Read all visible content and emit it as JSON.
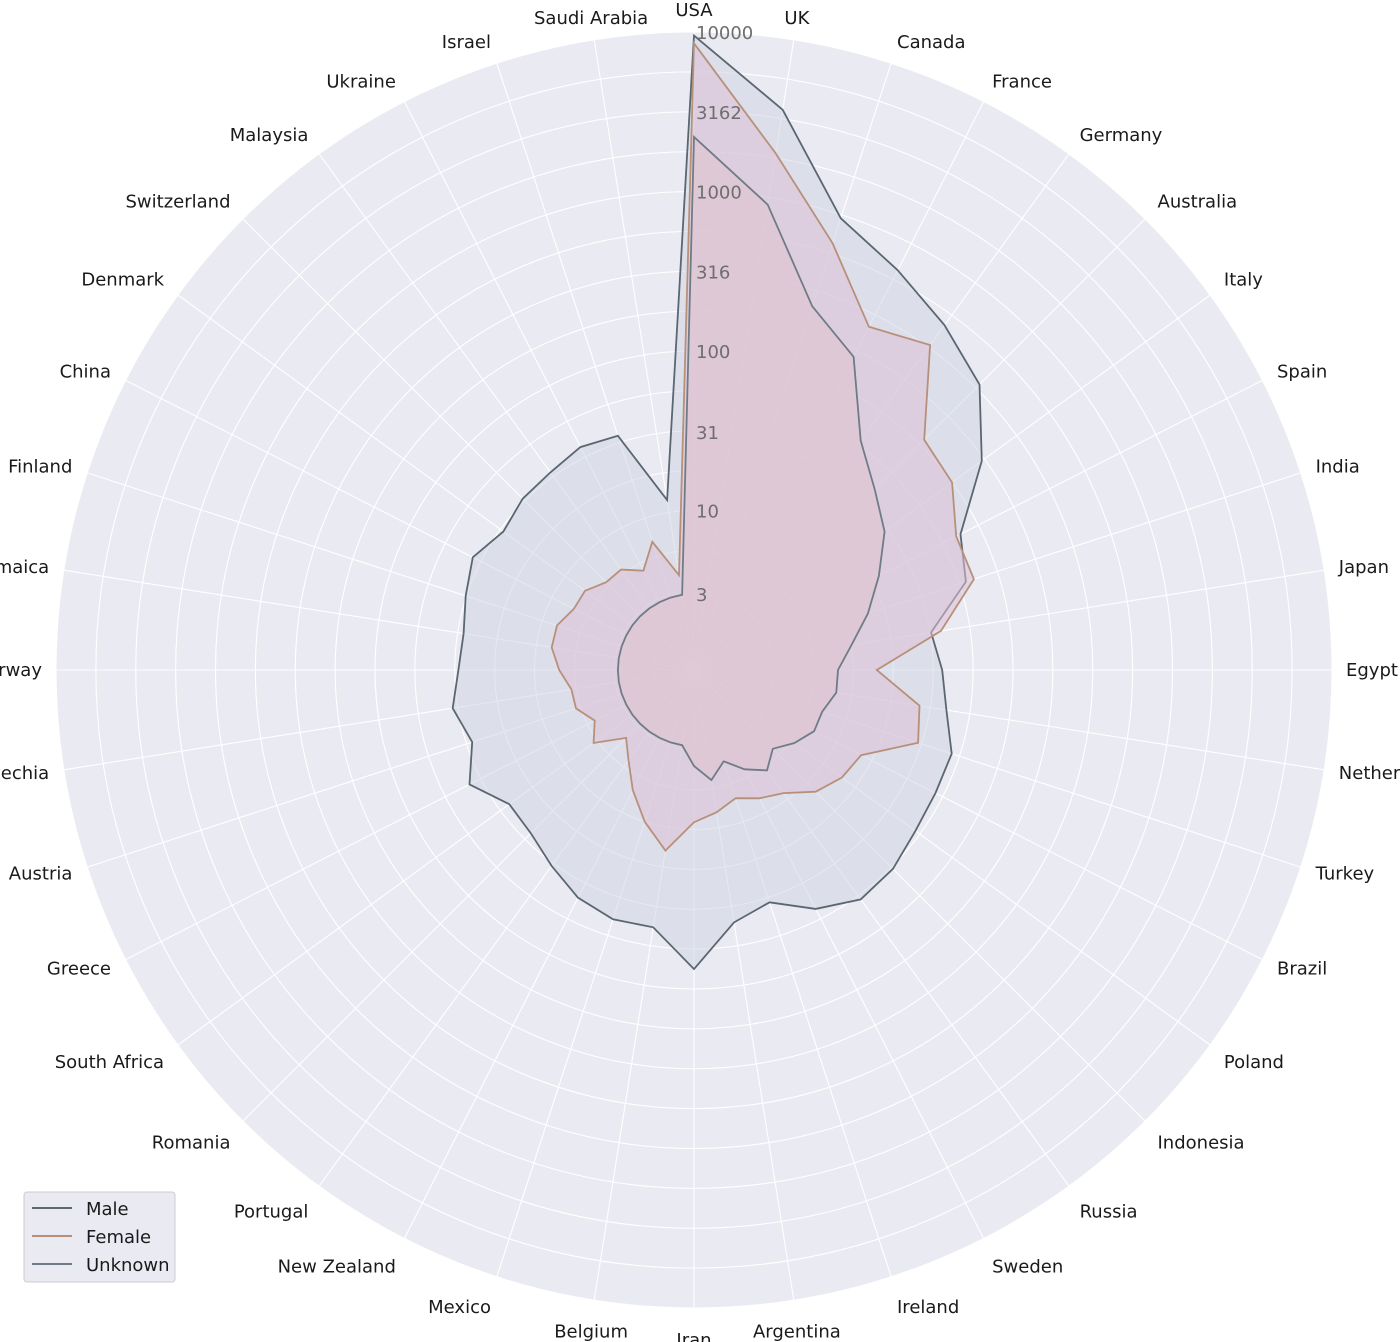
{
  "chart_data": {
    "type": "radar",
    "scale": "log",
    "rlim": [
      1,
      10000
    ],
    "grid": true,
    "legend_position": "bottom-left",
    "categories": [
      "USA",
      "UK",
      "Canada",
      "France",
      "Germany",
      "Australia",
      "Italy",
      "Spain",
      "India",
      "Japan",
      "Egypt",
      "Netherlands",
      "Turkey",
      "Brazil",
      "Poland",
      "Indonesia",
      "Russia",
      "Sweden",
      "Ireland",
      "Argentina",
      "Iran",
      "Belgium",
      "Mexico",
      "New Zealand",
      "Portugal",
      "Romania",
      "South Africa",
      "Greece",
      "Austria",
      "Czechia",
      "Norway",
      "Jamaica",
      "Finland",
      "China",
      "Denmark",
      "Switzerland",
      "Malaysia",
      "Ukraine",
      "Israel",
      "Saudi Arabia"
    ],
    "r_ticks": [
      3,
      10,
      31,
      100,
      316,
      1000,
      3162,
      10000
    ],
    "r_tick_labels": [
      "3",
      "10",
      "31",
      "100",
      "316",
      "1000",
      "3162",
      "10000"
    ],
    "series": [
      {
        "name": "Male",
        "color": "#5a6670",
        "fill": "#cfd5e3",
        "values": [
          9500,
          3600,
          950,
          650,
          470,
          340,
          170,
          75,
          62,
          32,
          36,
          40,
          50,
          50,
          52,
          58,
          60,
          48,
          34,
          40,
          75,
          43,
          44,
          40,
          33,
          28,
          27,
          38,
          29,
          34,
          30,
          29,
          32,
          36,
          30,
          33,
          34,
          37,
          35,
          12
        ]
      },
      {
        "name": "Female",
        "color": "#b8907a",
        "fill": "#dcc0d6",
        "values": [
          8500,
          1900,
          650,
          260,
          330,
          110,
          100,
          70,
          70,
          37,
          14,
          27,
          30,
          15,
          14,
          12,
          9,
          8,
          7,
          8,
          9,
          14,
          10,
          7,
          5,
          4,
          6,
          5,
          6,
          6,
          7,
          8,
          8,
          7,
          7,
          6,
          6,
          5,
          7,
          4
        ]
      },
      {
        "name": "Unknown",
        "color": "#6f7c86",
        "fill": "#e0c2ce",
        "values": [
          2200,
          900,
          250,
          160,
          60,
          40,
          30,
          20,
          14,
          10,
          8,
          8,
          7,
          7,
          6,
          5,
          6,
          5,
          4,
          5,
          4,
          3,
          3,
          3,
          3,
          3,
          3,
          3,
          3,
          3,
          3,
          3,
          3,
          3,
          3,
          3,
          3,
          3,
          3,
          3
        ]
      }
    ]
  }
}
